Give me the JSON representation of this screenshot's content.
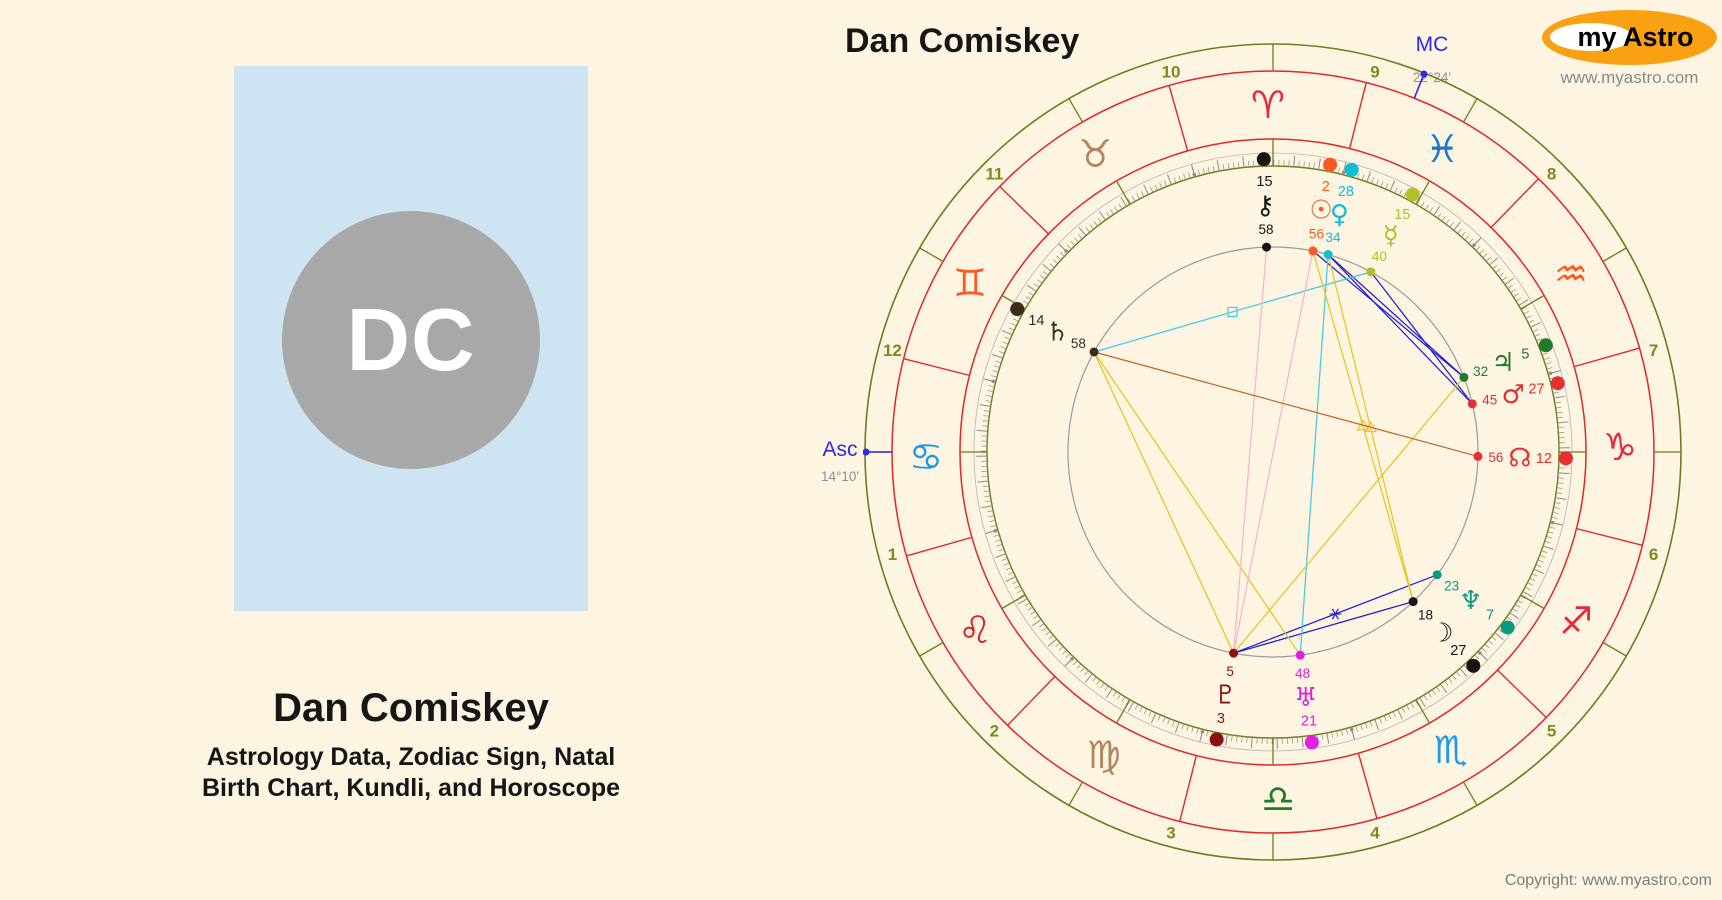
{
  "header": {
    "chart_title": "Dan Comiskey"
  },
  "profile_card": {
    "initials": "DC",
    "name": "Dan Comiskey",
    "subtitle_line1": "Astrology Data, Zodiac Sign, Natal",
    "subtitle_line2": "Birth Chart, Kundli, and Horoscope",
    "card_bg": "#cfe4f2",
    "avatar_color": "#a8a8a8"
  },
  "logo": {
    "text": "my Astro",
    "url": "www.myastro.com",
    "ellipse_color": "#f9a113"
  },
  "footer": {
    "copyright": "Copyright: www.myastro.com"
  },
  "angles": {
    "asc_label": "Asc",
    "asc_degree": "14°10'",
    "asc_lon": 104.17,
    "mc_label": "MC",
    "mc_degree": "22°24'",
    "mc_lon": 352.4,
    "label_color": "#2b2be0"
  },
  "wheel": {
    "colors": {
      "olive": "#6f7d1c",
      "red": "#e02828",
      "house_number": "#7c8b1d",
      "tick": "#8c8c8c",
      "inner_circle": "#9a9a9a"
    },
    "houses": [
      "1",
      "2",
      "3",
      "4",
      "5",
      "6",
      "7",
      "8",
      "9",
      "10",
      "11",
      "12"
    ],
    "signs": [
      {
        "name": "Aries",
        "glyph": "♈",
        "color": "#e8283c"
      },
      {
        "name": "Taurus",
        "glyph": "♉",
        "color": "#b5855f"
      },
      {
        "name": "Gemini",
        "glyph": "♊",
        "color": "#fb5a22"
      },
      {
        "name": "Cancer",
        "glyph": "♋",
        "color": "#1e9ae8"
      },
      {
        "name": "Leo",
        "glyph": "♌",
        "color": "#e02020"
      },
      {
        "name": "Virgo",
        "glyph": "♍",
        "color": "#b5855f"
      },
      {
        "name": "Libra",
        "glyph": "♎",
        "color": "#217a29"
      },
      {
        "name": "Scorpio",
        "glyph": "♏",
        "color": "#1e9ae8"
      },
      {
        "name": "Sagittarius",
        "glyph": "♐",
        "color": "#e8283c"
      },
      {
        "name": "Capricorn",
        "glyph": "♑",
        "color": "#e8283c"
      },
      {
        "name": "Aquarius",
        "glyph": "♒",
        "color": "#fb5a22"
      },
      {
        "name": "Pisces",
        "glyph": "♓",
        "color": "#1976d2"
      }
    ],
    "planets": [
      {
        "name": "Sun",
        "glyph": "☉",
        "color": "#f75b22",
        "lon": 2.93,
        "deg": "2",
        "min": "56"
      },
      {
        "name": "Moon",
        "glyph": "☽",
        "color": "#151515",
        "lon": 237.3,
        "deg": "27",
        "min": "18"
      },
      {
        "name": "Mercury",
        "glyph": "☿",
        "color": "#b3bf2b",
        "lon": 345.67,
        "deg": "15",
        "min": "40"
      },
      {
        "name": "Venus",
        "glyph": "♀",
        "color": "#10bdd3",
        "lon": 358.57,
        "deg": "28",
        "min": "34"
      },
      {
        "name": "Mars",
        "glyph": "♂",
        "color": "#e53030",
        "lon": 297.75,
        "deg": "27",
        "min": "45"
      },
      {
        "name": "Jupiter",
        "glyph": "♃",
        "color": "#207a2c",
        "lon": 305.53,
        "deg": "5",
        "min": "32"
      },
      {
        "name": "Saturn",
        "glyph": "♄",
        "color": "#3d2b1f",
        "lon": 74.97,
        "deg": "14",
        "min": "58"
      },
      {
        "name": "Uranus",
        "glyph": "♅",
        "color": "#e11ee1",
        "lon": 201.8,
        "deg": "21",
        "min": "48"
      },
      {
        "name": "Neptune",
        "glyph": "♆",
        "color": "#0a9a80",
        "lon": 247.38,
        "deg": "7",
        "min": "23"
      },
      {
        "name": "Pluto",
        "glyph": "♇",
        "color": "#8e1111",
        "lon": 183.08,
        "deg": "3",
        "min": "5"
      },
      {
        "name": "Node",
        "glyph": "☊",
        "color": "#e53030",
        "lon": 282.93,
        "deg": "12",
        "min": "56"
      },
      {
        "name": "Chiron",
        "glyph": "⚷",
        "color": "#151515",
        "lon": 15.97,
        "deg": "15",
        "min": "58"
      }
    ],
    "aspects": [
      {
        "from": "Sun",
        "to": "Jupiter",
        "color": "#2020cf",
        "symbol": ""
      },
      {
        "from": "Venus",
        "to": "Jupiter",
        "color": "#2020cf",
        "symbol": ""
      },
      {
        "from": "Venus",
        "to": "Mars",
        "color": "#2020cf",
        "symbol": ""
      },
      {
        "from": "Mercury",
        "to": "Mars",
        "color": "#2020cf",
        "symbol": ""
      },
      {
        "from": "Neptune",
        "to": "Pluto",
        "color": "#2020cf",
        "symbol": "sextile"
      },
      {
        "from": "Moon",
        "to": "Pluto",
        "color": "#2020cf",
        "symbol": ""
      },
      {
        "from": "Mercury",
        "to": "Saturn",
        "color": "#45c8e8",
        "symbol": "square"
      },
      {
        "from": "Venus",
        "to": "Uranus",
        "color": "#45c8e8",
        "symbol": ""
      },
      {
        "from": "Saturn",
        "to": "Uranus",
        "color": "#e8c420",
        "symbol": ""
      },
      {
        "from": "Saturn",
        "to": "Pluto",
        "color": "#e8c420",
        "symbol": ""
      },
      {
        "from": "Jupiter",
        "to": "Pluto",
        "color": "#e8c420",
        "symbol": ""
      },
      {
        "from": "Sun",
        "to": "Moon",
        "color": "#e8c420",
        "symbol": "triangle"
      },
      {
        "from": "Venus",
        "to": "Moon",
        "color": "#e8c420",
        "symbol": "triangle"
      },
      {
        "from": "Sun",
        "to": "Pluto",
        "color": "#f5b6c6",
        "symbol": ""
      },
      {
        "from": "Chiron",
        "to": "Pluto",
        "color": "#f5b6c6",
        "symbol": ""
      },
      {
        "from": "Saturn",
        "to": "Node",
        "color": "#bf6a1f",
        "symbol": ""
      }
    ]
  }
}
